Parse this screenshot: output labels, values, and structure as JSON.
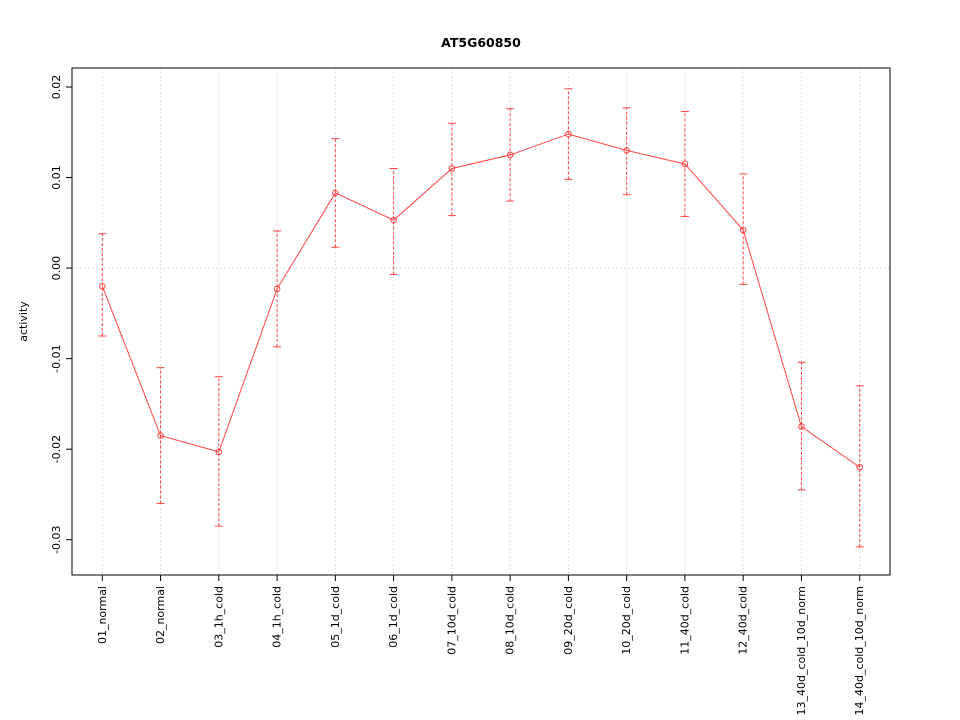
{
  "page": {
    "background": "#ffffff"
  },
  "chart_data": {
    "type": "line",
    "title": "AT5G60850",
    "xlabel": "",
    "ylabel": "activity",
    "legend": "none",
    "grid": {
      "vertical": true,
      "zero_line": true,
      "color": "#d8d8d8",
      "style": "dotted"
    },
    "marker": "open-circle",
    "categories": [
      "01_normal",
      "02_normal",
      "03_1h_cold",
      "04_1h_cold",
      "05_1d_cold",
      "06_1d_cold",
      "07_10d_cold",
      "08_10d_cold",
      "09_20d_cold",
      "10_20d_cold",
      "11_40d_cold",
      "12_40d_cold",
      "13_40d_cold_10d_norm",
      "14_40d_cold_10d_norm"
    ],
    "series": [
      {
        "name": "activity",
        "color": "#ff4444",
        "values": [
          -0.002,
          -0.0185,
          -0.0203,
          -0.0023,
          0.0083,
          0.0053,
          0.011,
          0.0125,
          0.0148,
          0.013,
          0.0115,
          0.0042,
          -0.0175,
          -0.022
        ],
        "error_low": [
          -0.0075,
          -0.026,
          -0.0285,
          -0.0087,
          0.0023,
          -0.0007,
          0.0058,
          0.0074,
          0.0098,
          0.0081,
          0.0057,
          -0.0018,
          -0.0245,
          -0.0308
        ],
        "error_high": [
          0.0038,
          -0.011,
          -0.012,
          0.0041,
          0.0143,
          0.011,
          0.016,
          0.0176,
          0.0198,
          0.0177,
          0.0173,
          0.0104,
          -0.0104,
          -0.013
        ]
      }
    ],
    "ylim": [
      -0.0339,
      0.0221
    ],
    "y_ticks": [
      0.02,
      0.01,
      0,
      -0.01,
      -0.02,
      -0.03
    ]
  }
}
